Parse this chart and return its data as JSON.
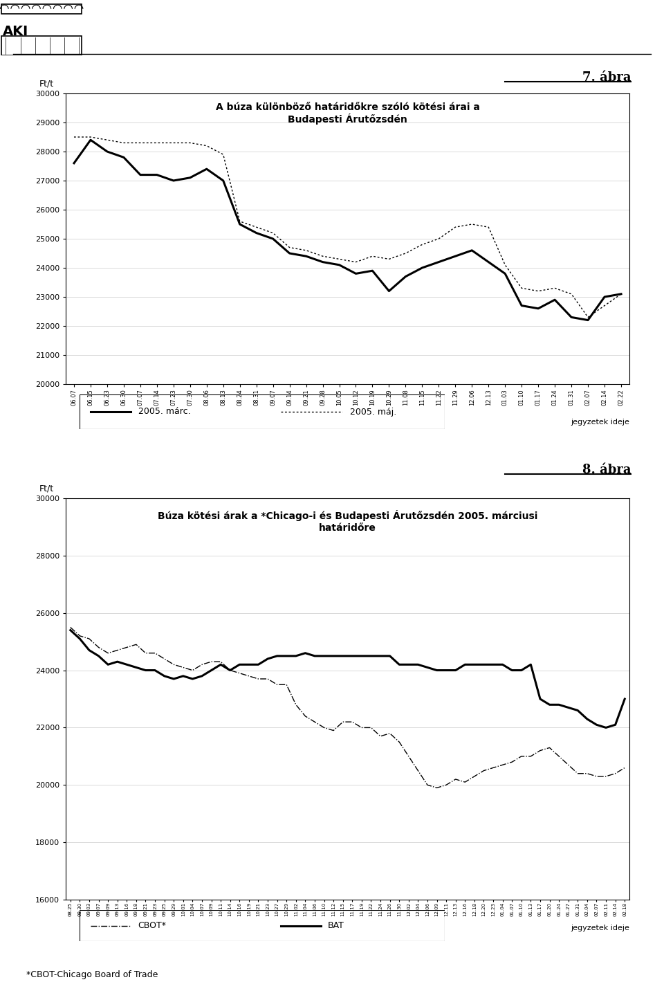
{
  "chart1": {
    "title_line1": "A búza különböző határidőkre szóló kötési árai a",
    "title_line2": "Budapesti Árutőzsdén",
    "ylabel": "Ft/t",
    "ylim": [
      20000,
      30000
    ],
    "yticks": [
      20000,
      21000,
      22000,
      23000,
      24000,
      25000,
      26000,
      27000,
      28000,
      29000,
      30000
    ],
    "xlabel_note": "jegyzetek ideje",
    "xtick_labels": [
      "06.07",
      "06.15",
      "06.23",
      "06.30",
      "07.07",
      "07.14",
      "07.23",
      "07.30",
      "08.06",
      "08.13",
      "08.24",
      "08.31",
      "09.07",
      "09.14",
      "09.21",
      "09.28",
      "10.05",
      "10.12",
      "10.19",
      "10.29",
      "11.08",
      "11.15",
      "11.22",
      "11.29",
      "12.06",
      "12.13",
      "01.03",
      "01.10",
      "01.17",
      "01.24",
      "01.31",
      "02.07",
      "02.14",
      "02.22"
    ],
    "series_marc": [
      27600,
      28400,
      28000,
      27800,
      27200,
      27200,
      27000,
      27100,
      27400,
      27000,
      25500,
      25200,
      25000,
      24500,
      24400,
      24200,
      24100,
      23800,
      23900,
      23200,
      23700,
      24000,
      24200,
      24400,
      24600,
      24200,
      23800,
      22700,
      22600,
      22900,
      22300,
      22200,
      23000,
      23100
    ],
    "series_maj": [
      28500,
      28500,
      28400,
      28300,
      28300,
      28300,
      28300,
      28300,
      28200,
      27900,
      25600,
      25400,
      25200,
      24700,
      24600,
      24400,
      24300,
      24200,
      24400,
      24300,
      24500,
      24800,
      25000,
      25400,
      25500,
      25400,
      24100,
      23300,
      23200,
      23300,
      23100,
      22300,
      22700,
      23100
    ],
    "legend_marc": "2005. márc.",
    "legend_maj": "2005. máj.",
    "abra_label": "7. ábra"
  },
  "chart2": {
    "title_line1": "Búza kötési árak a *Chicago-i és Budapesti Árutőzsdén 2005. márciusi",
    "title_line2": "határidőre",
    "ylabel": "Ft/t",
    "ylim": [
      16000,
      30000
    ],
    "yticks": [
      16000,
      18000,
      20000,
      22000,
      24000,
      26000,
      28000,
      30000
    ],
    "xlabel_note": "jegyzetek ideje",
    "xtick_labels": [
      "08.25",
      "08.30",
      "09.03",
      "09.07",
      "09.09",
      "09.13",
      "09.16",
      "09.18",
      "09.21",
      "09.23",
      "09.25",
      "09.29",
      "10.01",
      "10.04",
      "10.07",
      "10.09",
      "10.11",
      "10.14",
      "10.16",
      "10.19",
      "10.21",
      "10.23",
      "10.27",
      "10.29",
      "11.02",
      "11.04",
      "11.06",
      "11.10",
      "11.12",
      "11.15",
      "11.17",
      "11.19",
      "11.22",
      "11.24",
      "11.26",
      "11.30",
      "12.02",
      "12.04",
      "12.06",
      "12.09",
      "12.11",
      "12.13",
      "12.16",
      "12.18",
      "12.20",
      "12.23",
      "01.04",
      "01.07",
      "01.10",
      "01.13",
      "01.17",
      "01.20",
      "01.24",
      "01.27",
      "01.31",
      "02.04",
      "02.07",
      "02.11",
      "02.14",
      "02.18"
    ],
    "series_bat": [
      25400,
      25100,
      24700,
      24500,
      24200,
      24300,
      24200,
      24100,
      24000,
      24000,
      23800,
      23700,
      23800,
      23700,
      23800,
      24000,
      24200,
      24000,
      24200,
      24200,
      24200,
      24400,
      24500,
      24500,
      24500,
      24600,
      24500,
      24500,
      24500,
      24500,
      24500,
      24500,
      24500,
      24500,
      24500,
      24200,
      24200,
      24200,
      24100,
      24000,
      24000,
      24000,
      24200,
      24200,
      24200,
      24200,
      24200,
      24000,
      24000,
      24200,
      23000,
      22800,
      22800,
      22700,
      22600,
      22300,
      22100,
      22000,
      22100,
      23000
    ],
    "series_cbot": [
      25500,
      25200,
      25100,
      24800,
      24600,
      24700,
      24800,
      24900,
      24600,
      24600,
      24400,
      24200,
      24100,
      24000,
      24200,
      24300,
      24300,
      24000,
      23900,
      23800,
      23700,
      23700,
      23500,
      23500,
      22800,
      22400,
      22200,
      22000,
      21900,
      22200,
      22200,
      22000,
      22000,
      21700,
      21800,
      21500,
      21000,
      20500,
      20000,
      19900,
      20000,
      20200,
      20100,
      20300,
      20500,
      20600,
      20700,
      20800,
      21000,
      21000,
      21200,
      21300,
      21000,
      20700,
      20400,
      20400,
      20300,
      20300,
      20400,
      20600
    ],
    "legend_cbot": "CBOT*",
    "legend_bat": "BAT",
    "abra_label": "8. ábra",
    "footnote": "*CBOT-Chicago Board of Trade"
  },
  "background_color": "#ffffff"
}
